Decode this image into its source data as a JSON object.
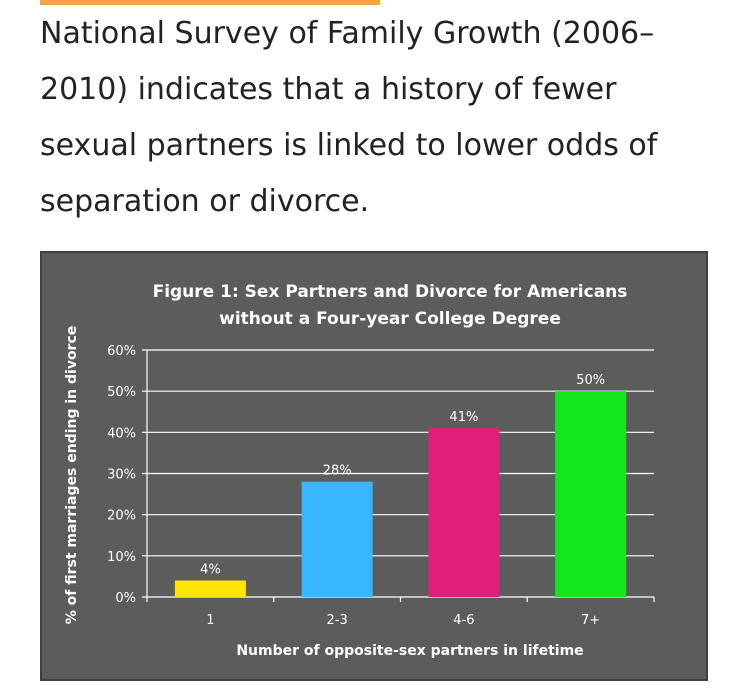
{
  "article": {
    "headline": "National Survey of Family Growth (2006–2010) indicates that a history of fewer sexual partners is linked to lower odds of separation or divorce."
  },
  "colors": {
    "accent": "#f4a34a",
    "panel": "#5c5c5c",
    "bar_1": "#ffe600",
    "bar_2_3": "#38b6ff",
    "bar_4_6": "#e11e78",
    "bar_7_plus": "#14e61e"
  },
  "chart_data": {
    "type": "bar",
    "title_lines": [
      "Figure 1: Sex Partners and Divorce for Americans",
      "without a Four-year College Degree"
    ],
    "xlabel": "Number of opposite-sex partners in lifetime",
    "ylabel": "% of first marriages ending in divorce",
    "categories": [
      "1",
      "2-3",
      "4-6",
      "7+"
    ],
    "values": [
      4,
      28,
      41,
      50
    ],
    "data_labels": [
      "4%",
      "28%",
      "41%",
      "50%"
    ],
    "y_ticks": [
      0,
      10,
      20,
      30,
      40,
      50,
      60
    ],
    "y_tick_labels": [
      "0%",
      "10%",
      "20%",
      "30%",
      "40%",
      "50%",
      "60%"
    ],
    "ylim": [
      0,
      60
    ],
    "grid": true,
    "legend": "none"
  }
}
